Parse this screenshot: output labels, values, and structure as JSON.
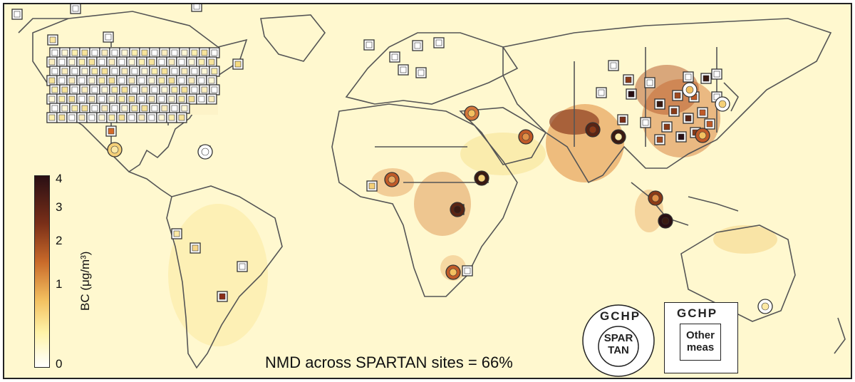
{
  "map": {
    "colorbar": {
      "title": "BC (μg/m³)",
      "ticks": [
        "0",
        "1",
        "2",
        "3",
        "4"
      ],
      "colors": [
        "#ffffff",
        "#fff3a8",
        "#f3c060",
        "#c96a2a",
        "#7a2f18",
        "#2a0f14"
      ]
    },
    "annotation": "NMD across SPARTAN sites = 66%",
    "legend": {
      "circle": {
        "outer": "GCHP",
        "inner_line1": "SPAR",
        "inner_line2": "TAN"
      },
      "square": {
        "outer": "GCHP",
        "inner_line1": "Other",
        "inner_line2": "meas"
      }
    },
    "background_color": "#fff8cf",
    "hotspot_color": "#c56a28"
  }
}
